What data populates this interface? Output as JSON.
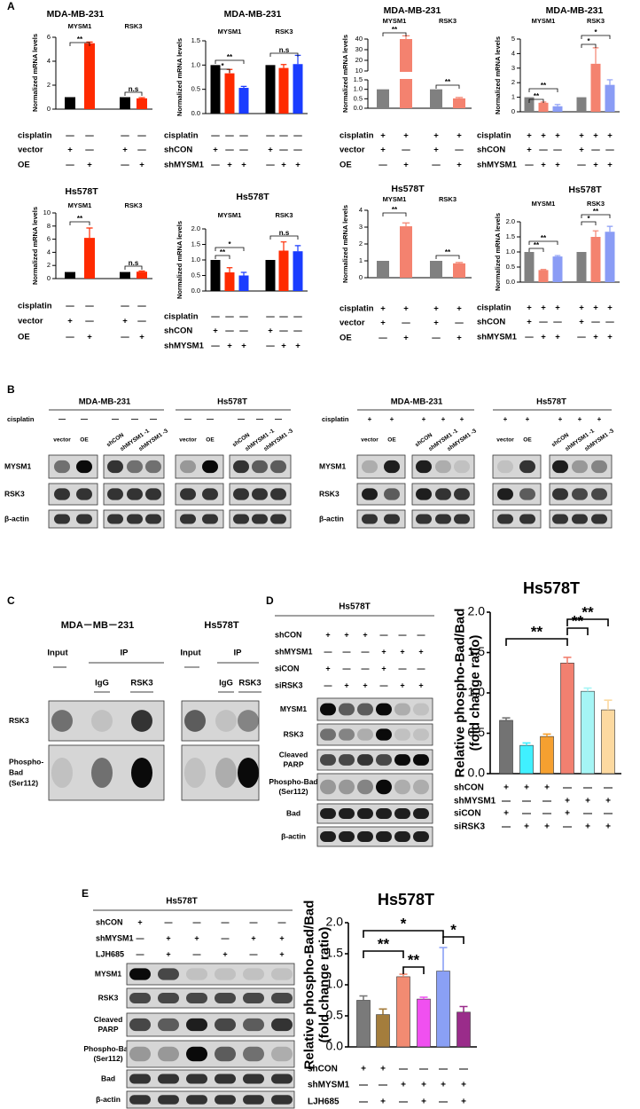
{
  "panel_labels": [
    "A",
    "B",
    "C",
    "D",
    "E"
  ],
  "chart_data": [
    {
      "type": "bar",
      "title": "MDA-MB-231",
      "ylabel": [
        "Normalized mRNA levels"
      ],
      "ylim": [
        0,
        6
      ],
      "yticks": [
        0,
        2,
        4,
        6
      ],
      "groups": [
        {
          "name": "MYSM1",
          "values": [
            1,
            5.5
          ],
          "errors": [
            null,
            0.1
          ],
          "colors": [
            "#000000",
            "#ff2a00"
          ]
        },
        {
          "name": "RSK3",
          "values": [
            1,
            0.9
          ],
          "errors": [
            null,
            0.06
          ],
          "colors": [
            "#000000",
            "#ff2a00"
          ]
        }
      ],
      "annotations": [
        "**",
        "n.s"
      ],
      "conditions": [
        {
          "name": "cisplatin",
          "marks": [
            "—",
            "—",
            "—",
            "—"
          ]
        },
        {
          "name": "vector",
          "marks": [
            "+",
            "—",
            "+",
            "—"
          ]
        },
        {
          "name": "OE",
          "marks": [
            "—",
            "+",
            "—",
            "+"
          ]
        }
      ]
    },
    {
      "type": "bar",
      "title": "MDA-MB-231",
      "ylabel": [
        "Normalized mRNA levels"
      ],
      "ylim": [
        0,
        1.5
      ],
      "yticks": [
        {
          "value": 0,
          "label": "0.0"
        },
        0.5,
        {
          "value": 1,
          "label": "1.0"
        },
        1.5
      ],
      "groups": [
        {
          "name": "MYSM1",
          "values": [
            1,
            0.83,
            0.53
          ],
          "errors": [
            null,
            0.08,
            0.03
          ],
          "colors": [
            "#000000",
            "#ff2a00",
            "#1a3cff"
          ]
        },
        {
          "name": "RSK3",
          "values": [
            1,
            0.94,
            1.02
          ],
          "errors": [
            null,
            0.07,
            0.18
          ],
          "colors": [
            "#000000",
            "#ff2a00",
            "#1a3cff"
          ]
        }
      ],
      "annotations": [
        "*",
        "**",
        "n.s"
      ],
      "conditions": [
        {
          "name": "cisplatin",
          "marks": [
            "—",
            "—",
            "—",
            "—",
            "—",
            "—"
          ]
        },
        {
          "name": "shCON",
          "marks": [
            "+",
            "—",
            "—",
            "+",
            "—",
            "—"
          ]
        },
        {
          "name": "shMYSM1",
          "marks": [
            "—",
            "+",
            "+",
            "—",
            "+",
            "+"
          ]
        }
      ]
    },
    {
      "type": "bar",
      "title": "MDA-MB-231",
      "ylabel": [
        "Normalized mRNA levels"
      ],
      "ylim": [
        0,
        40
      ],
      "ybreak": [
        1.5,
        10
      ],
      "yticks": [
        {
          "value": 0,
          "label": "0.0"
        },
        0.5,
        {
          "value": 1,
          "label": "1.0"
        },
        1.5,
        10,
        20,
        30,
        40
      ],
      "groups": [
        {
          "name": "MYSM1",
          "values": [
            1,
            40
          ],
          "errors": [
            null,
            3
          ],
          "colors": [
            "#808080",
            "#f4826f"
          ]
        },
        {
          "name": "RSK3",
          "values": [
            1,
            0.52
          ],
          "errors": [
            null,
            0.05
          ],
          "colors": [
            "#808080",
            "#f4826f"
          ]
        }
      ],
      "annotations": [
        "**",
        "**"
      ],
      "conditions": [
        {
          "name": "cisplatin",
          "marks": [
            "+",
            "+",
            "+",
            "+"
          ]
        },
        {
          "name": "vector",
          "marks": [
            "+",
            "—",
            "+",
            "—"
          ]
        },
        {
          "name": "OE",
          "marks": [
            "—",
            "+",
            "—",
            "+"
          ]
        }
      ]
    },
    {
      "type": "bar",
      "title": "MDA-MB-231",
      "ylabel": [
        "Normalized mRNA levels"
      ],
      "ylim": [
        0,
        5
      ],
      "yticks": [
        0,
        1,
        2,
        3,
        4,
        5
      ],
      "groups": [
        {
          "name": "MYSM1",
          "values": [
            1,
            0.62,
            0.38
          ],
          "errors": [
            null,
            0.05,
            0.12
          ],
          "colors": [
            "#808080",
            "#f4826f",
            "#8a9cf5"
          ]
        },
        {
          "name": "RSK3",
          "values": [
            1,
            3.3,
            1.85
          ],
          "errors": [
            null,
            1.1,
            0.35
          ],
          "colors": [
            "#808080",
            "#f4826f",
            "#8a9cf5"
          ]
        }
      ],
      "annotations": [
        "**",
        "**",
        "*",
        "*"
      ],
      "conditions": [
        {
          "name": "cisplatin",
          "marks": [
            "+",
            "+",
            "+",
            "+",
            "+",
            "+"
          ]
        },
        {
          "name": "shCON",
          "marks": [
            "+",
            "—",
            "—",
            "+",
            "—",
            "—"
          ]
        },
        {
          "name": "shMYSM1",
          "marks": [
            "—",
            "+",
            "+",
            "—",
            "+",
            "+"
          ]
        }
      ]
    },
    {
      "type": "bar",
      "title": "Hs578T",
      "ylabel": [
        "Normalized mRNA levels"
      ],
      "ylim": [
        0,
        10
      ],
      "yticks": [
        0,
        2,
        4,
        6,
        8,
        10
      ],
      "groups": [
        {
          "name": "MYSM1",
          "values": [
            1,
            6.2
          ],
          "errors": [
            null,
            1.5
          ],
          "colors": [
            "#000000",
            "#ff2a00"
          ]
        },
        {
          "name": "RSK3",
          "values": [
            1,
            1.05
          ],
          "errors": [
            null,
            0.1
          ],
          "colors": [
            "#000000",
            "#ff2a00"
          ]
        }
      ],
      "annotations": [
        "**",
        "n.s"
      ],
      "conditions": [
        {
          "name": "cisplatin",
          "marks": [
            "—",
            "—",
            "—",
            "—"
          ]
        },
        {
          "name": "vector",
          "marks": [
            "+",
            "—",
            "+",
            "—"
          ]
        },
        {
          "name": "OE",
          "marks": [
            "—",
            "+",
            "—",
            "+"
          ]
        }
      ]
    },
    {
      "type": "bar",
      "title": "Hs578T",
      "ylabel": [
        "Normalized mRNA levels"
      ],
      "ylim": [
        0,
        2
      ],
      "yticks": [
        {
          "value": 0,
          "label": "0.0"
        },
        0.5,
        {
          "value": 1,
          "label": "1.0"
        },
        1.5,
        {
          "value": 2,
          "label": "2.0"
        }
      ],
      "groups": [
        {
          "name": "MYSM1",
          "values": [
            1,
            0.6,
            0.5
          ],
          "errors": [
            null,
            0.15,
            0.1
          ],
          "colors": [
            "#000000",
            "#ff2a00",
            "#1a3cff"
          ]
        },
        {
          "name": "RSK3",
          "values": [
            1,
            1.3,
            1.28
          ],
          "errors": [
            null,
            0.28,
            0.18
          ],
          "colors": [
            "#000000",
            "#ff2a00",
            "#1a3cff"
          ]
        }
      ],
      "annotations": [
        "**",
        "*",
        "n.s"
      ],
      "conditions": [
        {
          "name": "cisplatin",
          "marks": [
            "—",
            "—",
            "—",
            "—",
            "—",
            "—"
          ]
        },
        {
          "name": "shCON",
          "marks": [
            "+",
            "—",
            "—",
            "+",
            "—",
            "—"
          ]
        },
        {
          "name": "shMYSM1",
          "marks": [
            "—",
            "+",
            "+",
            "—",
            "+",
            "+"
          ]
        }
      ]
    },
    {
      "type": "bar",
      "title": "Hs578T",
      "ylabel": [
        "Normalized mRNA levels"
      ],
      "ylim": [
        0,
        4
      ],
      "yticks": [
        0,
        1,
        2,
        3,
        4
      ],
      "groups": [
        {
          "name": "MYSM1",
          "values": [
            1,
            3.05
          ],
          "errors": [
            null,
            0.2
          ],
          "colors": [
            "#808080",
            "#f4826f"
          ]
        },
        {
          "name": "RSK3",
          "values": [
            1,
            0.85
          ],
          "errors": [
            null,
            0.05
          ],
          "colors": [
            "#808080",
            "#f4826f"
          ]
        }
      ],
      "annotations": [
        "**",
        "**"
      ],
      "conditions": [
        {
          "name": "cisplatin",
          "marks": [
            "+",
            "+",
            "+",
            "+"
          ]
        },
        {
          "name": "vector",
          "marks": [
            "+",
            "—",
            "+",
            "—"
          ]
        },
        {
          "name": "OE",
          "marks": [
            "—",
            "+",
            "—",
            "+"
          ]
        }
      ]
    },
    {
      "type": "bar",
      "title": "Hs578T",
      "ylabel": [
        "Normalized mRNA levels"
      ],
      "ylim": [
        0,
        2
      ],
      "yticks": [
        {
          "value": 0,
          "label": "0.0"
        },
        0.5,
        {
          "value": 1,
          "label": "1.0"
        },
        1.5,
        {
          "value": 2,
          "label": "2.0"
        }
      ],
      "groups": [
        {
          "name": "MYSM1",
          "values": [
            1,
            0.4,
            0.85
          ],
          "errors": [
            null,
            0.02,
            0.03
          ],
          "colors": [
            "#808080",
            "#f4826f",
            "#8a9cf5"
          ]
        },
        {
          "name": "RSK3",
          "values": [
            1,
            1.5,
            1.67
          ],
          "errors": [
            null,
            0.2,
            0.18
          ],
          "colors": [
            "#808080",
            "#f4826f",
            "#8a9cf5"
          ]
        }
      ],
      "annotations": [
        "**",
        "**",
        "*",
        "**"
      ],
      "conditions": [
        {
          "name": "cisplatin",
          "marks": [
            "+",
            "+",
            "+",
            "+",
            "+",
            "+"
          ]
        },
        {
          "name": "shCON",
          "marks": [
            "+",
            "—",
            "—",
            "+",
            "—",
            "—"
          ]
        },
        {
          "name": "shMYSM1",
          "marks": [
            "—",
            "+",
            "+",
            "—",
            "+",
            "+"
          ]
        }
      ]
    },
    {
      "type": "bar",
      "title": "Hs578T",
      "ylabel": [
        "Relative phospho-Bad/Bad",
        "(fold change ratio)"
      ],
      "ylim": [
        0,
        2
      ],
      "yticks": [
        {
          "value": 0,
          "label": "0.0"
        },
        0.5,
        {
          "value": 1,
          "label": "1.0"
        },
        1.5,
        {
          "value": 2,
          "label": "2.0"
        }
      ],
      "groups": [
        {
          "values": [
            0.66,
            0.35,
            0.46,
            1.37,
            1.02,
            0.79
          ],
          "errors": [
            0.03,
            0.03,
            0.03,
            0.07,
            0.04,
            0.12
          ],
          "colors": [
            "#737373",
            "#40f0ff",
            "#f5a030",
            "#f28070",
            "#a5f5f5",
            "#fcd9a0"
          ]
        }
      ],
      "annotations": [
        "**",
        "**",
        "**"
      ],
      "conditions": [
        {
          "name": "shCON",
          "marks": [
            "+",
            "+",
            "+",
            "—",
            "—",
            "—"
          ]
        },
        {
          "name": "shMYSM1",
          "marks": [
            "—",
            "—",
            "—",
            "+",
            "+",
            "+"
          ]
        },
        {
          "name": "siCON",
          "marks": [
            "+",
            "—",
            "—",
            "+",
            "—",
            "—"
          ]
        },
        {
          "name": "siRSK3",
          "marks": [
            "—",
            "+",
            "+",
            "—",
            "+",
            "+"
          ]
        }
      ]
    },
    {
      "type": "bar",
      "title": "Hs578T",
      "ylabel": [
        "Relative phospho-Bad/Bad",
        "(fold change ratio)"
      ],
      "ylim": [
        0,
        2
      ],
      "yticks": [
        {
          "value": 0,
          "label": "0.0"
        },
        0.5,
        {
          "value": 1,
          "label": "1.0"
        },
        1.5,
        {
          "value": 2,
          "label": "2.0"
        }
      ],
      "groups": [
        {
          "values": [
            0.75,
            0.52,
            1.13,
            0.77,
            1.22,
            0.56
          ],
          "errors": [
            0.07,
            0.09,
            0.04,
            0.03,
            0.38,
            0.09
          ],
          "colors": [
            "#7a7a7a",
            "#a47d3c",
            "#f28b72",
            "#f050f0",
            "#8aa0f5",
            "#9a2c8a"
          ]
        }
      ],
      "annotations": [
        "**",
        "*",
        "**",
        "*"
      ],
      "conditions": [
        {
          "name": "shCON",
          "marks": [
            "+",
            "+",
            "—",
            "—",
            "—",
            "—"
          ]
        },
        {
          "name": "shMYSM1",
          "marks": [
            "—",
            "—",
            "+",
            "+",
            "+",
            "+"
          ]
        },
        {
          "name": "LJH685",
          "marks": [
            "—",
            "+",
            "—",
            "+",
            "—",
            "+"
          ]
        }
      ]
    }
  ],
  "blot_b": [
    {
      "cell_lines": [
        "MDA-MB-231",
        "Hs578T"
      ],
      "treatment": "cisplatin",
      "treatment_marks": [
        "—",
        "—",
        "—",
        "—",
        "—",
        "—",
        "—",
        "—",
        "—",
        "—"
      ],
      "lanes": [
        "vector",
        "OE",
        "shCON",
        "shMYSM1 -1",
        "shMYSM1 -3",
        "vector",
        "OE",
        "shCON",
        "shMYSM1 -1",
        "shMYSM1 -3"
      ],
      "rows": [
        "MYSM1",
        "RSK3",
        "β-actin"
      ]
    },
    {
      "cell_lines": [
        "MDA-MB-231",
        "Hs578T"
      ],
      "treatment": "cisplatin",
      "treatment_marks": [
        "+",
        "+",
        "+",
        "+",
        "+",
        "+",
        "+",
        "+",
        "+",
        "+"
      ],
      "lanes": [
        "vector",
        "OE",
        "shCON",
        "shMYSM1 -1",
        "shMYSM1 -3",
        "vector",
        "OE",
        "shCON",
        "shMYSM1 -1",
        "shMYSM1 -3"
      ],
      "rows": [
        "MYSM1",
        "RSK3",
        "β-actin"
      ]
    }
  ],
  "blot_c": {
    "cell_lines": [
      "MDA－MB－231",
      "Hs578T"
    ],
    "groups": [
      "Input",
      "IP"
    ],
    "lanes": [
      "IgG",
      "RSK3"
    ],
    "rows": [
      [
        "RSK3"
      ],
      [
        "Phospho-",
        "Bad",
        "(Ser112)"
      ]
    ]
  },
  "blot_d": {
    "title": "Hs578T",
    "conditions": [
      {
        "name": "shCON",
        "marks": [
          "+",
          "+",
          "+",
          "—",
          "—",
          "—"
        ]
      },
      {
        "name": "shMYSM1",
        "marks": [
          "—",
          "—",
          "—",
          "+",
          "+",
          "+"
        ]
      },
      {
        "name": "siCON",
        "marks": [
          "+",
          "—",
          "—",
          "+",
          "—",
          "—"
        ]
      },
      {
        "name": "siRSK3",
        "marks": [
          "—",
          "+",
          "+",
          "—",
          "+",
          "+"
        ]
      }
    ],
    "rows": [
      [
        "MYSM1"
      ],
      [
        "RSK3"
      ],
      [
        "Cleaved",
        "PARP"
      ],
      [
        "Phospho-Bad",
        "(Ser112)"
      ],
      [
        "Bad"
      ],
      [
        "β-actin"
      ]
    ]
  },
  "blot_e": {
    "title": "Hs578T",
    "conditions": [
      {
        "name": "shCON",
        "marks": [
          "+",
          "—",
          "—",
          "—",
          "—",
          "—"
        ]
      },
      {
        "name": "shMYSM1",
        "marks": [
          "—",
          "+",
          "+",
          "—",
          "+",
          "+"
        ]
      },
      {
        "name": "LJH685",
        "marks": [
          "—",
          "+",
          "—",
          "+",
          "—",
          "+"
        ]
      }
    ],
    "rows": [
      [
        "MYSM1"
      ],
      [
        "RSK3"
      ],
      [
        "Cleaved",
        "PARP"
      ],
      [
        "Phospho-Bad",
        "(Ser112)"
      ],
      [
        "Bad"
      ],
      [
        "β-actin"
      ]
    ]
  }
}
